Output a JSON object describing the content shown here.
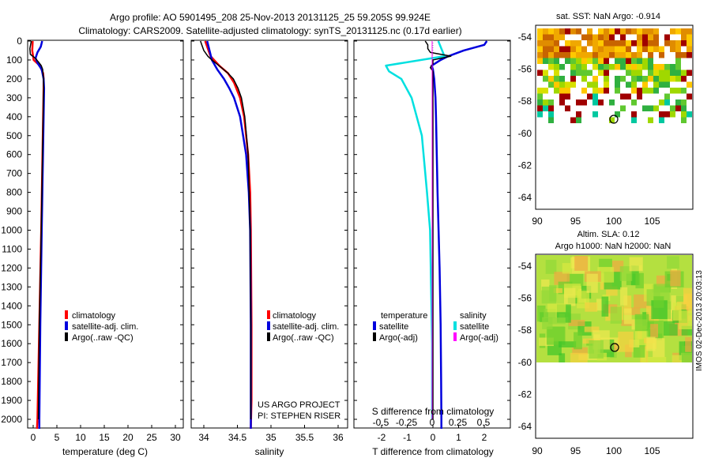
{
  "header": {
    "line1": "Argo profile: AO 5901495_208 25-Nov-2013 20131125_25 59.205S 99.924E",
    "line2": "Climatology: CARS2009. Satellite-adjusted climatology: synTS_20131125.nc (0.17d earlier)"
  },
  "depth_ticks": [
    0,
    100,
    200,
    300,
    400,
    500,
    600,
    700,
    800,
    900,
    1000,
    1100,
    1200,
    1300,
    1400,
    1500,
    1600,
    1700,
    1800,
    1900,
    2000
  ],
  "colors": {
    "climatology": "#ff0000",
    "satellite": "#0000dd",
    "argo": "#000000",
    "sat_salinity": "#00e0e0",
    "argo_salinity": "#ff00ff"
  },
  "panels": {
    "temperature": {
      "xlabel": "temperature (deg C)",
      "xticks": [
        "0",
        "5",
        "10",
        "15",
        "20",
        "25",
        "30"
      ],
      "legend": [
        "climatology",
        "satellite-adj. clim.",
        "Argo(..raw -QC)"
      ]
    },
    "salinity": {
      "xlabel": "salinity",
      "xticks": [
        "34",
        "34.5",
        "35",
        "35.5",
        "36"
      ],
      "legend": [
        "climatology",
        "satellite-adj. clim.",
        "Argo(..raw -QC)"
      ],
      "credit1": "US ARGO PROJECT",
      "credit2": "PI: STEPHEN RISER"
    },
    "difference": {
      "xlabel": "T difference from climatology",
      "xticks": [
        "-2",
        "-1",
        "0",
        "1",
        "2"
      ],
      "top_label": "S difference from climatology",
      "top_ticks": [
        "-0.5",
        "-0.25",
        "0",
        "0.25",
        "0.5"
      ],
      "legend_t_title": "temperature",
      "legend_t": [
        "satellite",
        "Argo(-adj)"
      ],
      "legend_s_title": "salinity",
      "legend_s": [
        "satellite",
        "Argo(-adj)"
      ]
    },
    "sst_map": {
      "title": "sat. SST: NaN Argo: -0.914",
      "yticks": [
        "-54",
        "-56",
        "-58",
        "-60",
        "-62",
        "-64"
      ],
      "xticks": [
        "90",
        "95",
        "100",
        "105"
      ]
    },
    "sla_map": {
      "title1": "Altim. SLA: 0.12",
      "title2": "Argo h1000: NaN h2000: NaN",
      "yticks": [
        "-54",
        "-56",
        "-58",
        "-60",
        "-62",
        "-64"
      ],
      "xticks": [
        "90",
        "95",
        "100",
        "105"
      ]
    }
  },
  "watermark": "IMOS 02-Dec-2013 20:03:13",
  "chart_data": [
    {
      "type": "line",
      "title": "",
      "xlabel": "temperature (deg C)",
      "ylabel": "",
      "xlim": [
        -1,
        31
      ],
      "ylim": [
        2060,
        0
      ],
      "series": [
        {
          "name": "climatology",
          "depth": [
            0,
            50,
            100,
            130,
            170,
            200,
            250,
            400,
            700,
            1000,
            1500,
            2000,
            2050
          ],
          "values": [
            -0.1,
            -0.2,
            0.1,
            1.4,
            2.1,
            2.2,
            2.2,
            2.1,
            1.9,
            1.7,
            1.3,
            0.9,
            0.8
          ]
        },
        {
          "name": "satellite-adj. clim.",
          "depth": [
            0,
            30,
            60,
            90,
            120,
            150,
            200,
            250,
            400,
            700,
            1000,
            1500,
            2000,
            2050
          ],
          "values": [
            1.9,
            1.6,
            0.9,
            0.5,
            1.0,
            1.8,
            2.2,
            2.3,
            2.2,
            2.0,
            1.8,
            1.5,
            1.3,
            1.3
          ]
        },
        {
          "name": "Argo(..raw -QC)",
          "depth": [
            0,
            40,
            70,
            90,
            110,
            130,
            150,
            180,
            200,
            250,
            400,
            700,
            1000,
            1500,
            2000
          ],
          "values": [
            -0.4,
            -0.7,
            -0.6,
            0.4,
            1.1,
            1.7,
            2.0,
            2.1,
            2.2,
            2.2,
            2.1,
            1.9,
            1.7,
            1.3,
            1.1
          ]
        }
      ]
    },
    {
      "type": "line",
      "title": "",
      "xlabel": "salinity",
      "ylabel": "",
      "xlim": [
        33.9,
        36.1
      ],
      "ylim": [
        2060,
        0
      ],
      "series": [
        {
          "name": "climatology",
          "depth": [
            0,
            80,
            130,
            170,
            220,
            300,
            400,
            600,
            800,
            1000,
            1500,
            1900,
            2050
          ],
          "values": [
            34.02,
            34.1,
            34.23,
            34.36,
            34.45,
            34.54,
            34.6,
            34.66,
            34.69,
            34.7,
            34.71,
            34.71,
            34.7
          ]
        },
        {
          "name": "satellite-adj. clim.",
          "depth": [
            0,
            100,
            150,
            200,
            250,
            300,
            400,
            600,
            800,
            1000,
            1500,
            2000,
            2050
          ],
          "values": [
            34.05,
            34.12,
            34.2,
            34.3,
            34.38,
            34.45,
            34.54,
            34.63,
            34.67,
            34.69,
            34.7,
            34.7,
            34.7
          ]
        },
        {
          "name": "Argo(..raw -QC)",
          "depth": [
            0,
            50,
            80,
            100,
            140,
            170,
            200,
            250,
            300,
            400,
            600,
            1000,
            1500,
            2000
          ],
          "values": [
            33.95,
            34.0,
            34.06,
            34.12,
            34.26,
            34.36,
            34.44,
            34.51,
            34.56,
            34.61,
            34.66,
            34.69,
            34.7,
            34.7
          ]
        }
      ]
    },
    {
      "type": "line",
      "title": "",
      "xlabel": "T difference from climatology",
      "ylabel": "",
      "xlim": [
        -2.5,
        2.5
      ],
      "ylim": [
        2060,
        0
      ],
      "series": [
        {
          "name": "temperature satellite",
          "depth": [
            0,
            20,
            50,
            80,
            100,
            130,
            150,
            200,
            300,
            400,
            600,
            800,
            1000,
            1200,
            1500,
            1800,
            2000,
            2050
          ],
          "values": [
            2.1,
            2.0,
            1.2,
            0.6,
            0.3,
            -0.05,
            0.0,
            0.05,
            0.1,
            0.12,
            0.15,
            0.18,
            0.22,
            0.26,
            0.3,
            0.32,
            0.33,
            0.33
          ]
        },
        {
          "name": "temperature Argo(-adj)",
          "depth": [
            0,
            20,
            40,
            60,
            80,
            100,
            120,
            140,
            160,
            200,
            250,
            300,
            400,
            600,
            1000,
            1500,
            2000
          ],
          "values": [
            -0.3,
            -0.2,
            -0.2,
            -0.1,
            0.7,
            0.0,
            0.0,
            -0.1,
            0.0,
            0.0,
            0.0,
            0.0,
            0.0,
            0.0,
            0.0,
            0.0,
            0.0
          ]
        },
        {
          "name": "salinity satellite",
          "depth": [
            0,
            80,
            130,
            160,
            200,
            300,
            500,
            800,
            1000,
            1300,
            1600,
            2000
          ],
          "values": [
            0.06,
            0.12,
            -0.45,
            -0.42,
            -0.3,
            -0.2,
            -0.1,
            -0.05,
            -0.02,
            -0.01,
            0.0,
            0.0
          ]
        },
        {
          "name": "salinity Argo(-adj)",
          "depth": [
            0,
            2000
          ],
          "values": [
            0.0,
            0.0
          ]
        }
      ]
    }
  ]
}
